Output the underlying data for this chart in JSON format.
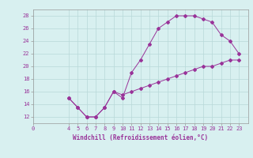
{
  "xlabel": "Windchill (Refroidissement éolien,°C)",
  "x_data": [
    4,
    5,
    6,
    7,
    8,
    9,
    10,
    11,
    12,
    13,
    14,
    15,
    16,
    17,
    18,
    19,
    20,
    21,
    22,
    23
  ],
  "y_data": [
    15,
    13.5,
    12,
    12,
    13.5,
    16,
    15,
    19,
    21,
    23.5,
    26,
    27,
    28,
    28,
    28,
    27.5,
    27,
    25,
    24,
    22
  ],
  "x_data2": [
    4,
    5,
    6,
    7,
    8,
    9,
    10,
    11,
    12,
    13,
    14,
    15,
    16,
    17,
    18,
    19,
    20,
    21,
    22,
    23
  ],
  "y_data2": [
    15,
    13.5,
    12,
    12,
    13.5,
    16,
    15.5,
    16,
    16.5,
    17,
    17.5,
    18,
    18.5,
    19,
    19.5,
    20,
    20,
    20.5,
    21,
    21
  ],
  "line_color": "#993399",
  "bg_color": "#d8f0f0",
  "grid_color": "#b8d8d8",
  "ylim": [
    11,
    29
  ],
  "xlim": [
    0,
    24
  ],
  "yticks": [
    12,
    14,
    16,
    18,
    20,
    22,
    24,
    26,
    28
  ],
  "xticks": [
    0,
    4,
    5,
    6,
    7,
    8,
    9,
    10,
    11,
    12,
    13,
    14,
    15,
    16,
    17,
    18,
    19,
    20,
    21,
    22,
    23
  ],
  "tick_fontsize": 5.0,
  "xlabel_fontsize": 5.5
}
